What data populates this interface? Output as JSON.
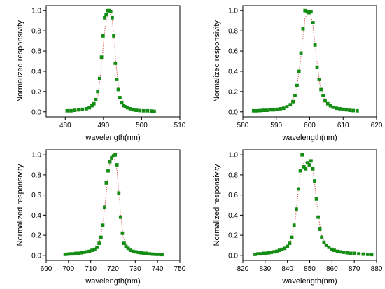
{
  "colors": {
    "marker": "#138d13",
    "fit_line": "#e05050",
    "axis": "#000000"
  },
  "chart_data": [
    {
      "type": "scatter",
      "title": "",
      "xlabel": "wavelength(nm)",
      "ylabel": "Normalized responsivity",
      "xlim": [
        475,
        510
      ],
      "ylim": [
        -0.05,
        1.05
      ],
      "xticks": [
        480,
        490,
        500,
        510
      ],
      "yticks": [
        0.0,
        0.2,
        0.4,
        0.6,
        0.8,
        1.0
      ],
      "grid": false,
      "series": [
        {
          "x": [
            480.5,
            481.5,
            482.5,
            483.5,
            484.5,
            485.5,
            486.3,
            487.0,
            487.5,
            488.0,
            488.5,
            489.0,
            489.5,
            489.9,
            490.3,
            490.7,
            491.1,
            491.5,
            491.9,
            492.3,
            492.7,
            493.1,
            493.5,
            493.9,
            494.3,
            494.8,
            495.3,
            495.8,
            496.3,
            497.0,
            497.8,
            498.6,
            499.5,
            500.5,
            501.5,
            502.5,
            503.3
          ],
          "values": [
            0.01,
            0.01,
            0.015,
            0.02,
            0.025,
            0.03,
            0.04,
            0.06,
            0.08,
            0.12,
            0.2,
            0.33,
            0.54,
            0.75,
            0.93,
            0.96,
            1.0,
            1.0,
            0.99,
            0.93,
            0.75,
            0.48,
            0.32,
            0.22,
            0.14,
            0.09,
            0.06,
            0.05,
            0.04,
            0.03,
            0.02,
            0.015,
            0.012,
            0.01,
            0.01,
            0.008,
            0.005
          ],
          "fit": [
            [
              480.5,
              0.005
            ],
            [
              484.5,
              0.02
            ],
            [
              487,
              0.05
            ],
            [
              488.5,
              0.15
            ],
            [
              489.5,
              0.45
            ],
            [
              490.3,
              0.8
            ],
            [
              491.3,
              1.0
            ],
            [
              492.3,
              0.92
            ],
            [
              493.1,
              0.55
            ],
            [
              494,
              0.22
            ],
            [
              495.3,
              0.07
            ],
            [
              497.5,
              0.025
            ],
            [
              503.3,
              0.005
            ]
          ]
        }
      ]
    },
    {
      "type": "scatter",
      "title": "",
      "xlabel": "wavelength(nm)",
      "ylabel": "Normalized responsivity",
      "xlim": [
        580,
        620
      ],
      "ylim": [
        -0.05,
        1.05
      ],
      "xticks": [
        580,
        590,
        600,
        610,
        620
      ],
      "yticks": [
        0.0,
        0.2,
        0.4,
        0.6,
        0.8,
        1.0
      ],
      "grid": false,
      "series": [
        {
          "x": [
            583.2,
            584.2,
            585.2,
            586.2,
            587.2,
            588.2,
            589.2,
            590.2,
            591.2,
            592.2,
            593.2,
            594.2,
            595.0,
            595.6,
            596.2,
            596.8,
            597.4,
            598.0,
            598.6,
            599.2,
            599.8,
            600.4,
            601.0,
            601.6,
            602.2,
            602.8,
            603.4,
            604.0,
            604.6,
            605.4,
            606.2,
            607.0,
            608.0,
            609.0,
            610.0,
            611.0,
            612.0,
            613.0,
            614.2
          ],
          "values": [
            0.01,
            0.01,
            0.012,
            0.015,
            0.015,
            0.02,
            0.02,
            0.025,
            0.03,
            0.035,
            0.05,
            0.07,
            0.1,
            0.16,
            0.26,
            0.4,
            0.58,
            0.82,
            1.0,
            0.99,
            0.98,
            0.99,
            0.88,
            0.66,
            0.44,
            0.32,
            0.22,
            0.16,
            0.11,
            0.08,
            0.06,
            0.045,
            0.035,
            0.03,
            0.025,
            0.02,
            0.015,
            0.012,
            0.01
          ],
          "fit": [
            [
              583.2,
              0.01
            ],
            [
              590,
              0.02
            ],
            [
              594,
              0.06
            ],
            [
              596,
              0.2
            ],
            [
              597.4,
              0.55
            ],
            [
              598.6,
              0.92
            ],
            [
              599.6,
              1.0
            ],
            [
              600.8,
              0.9
            ],
            [
              601.8,
              0.6
            ],
            [
              603,
              0.28
            ],
            [
              604.6,
              0.1
            ],
            [
              607,
              0.04
            ],
            [
              614.2,
              0.01
            ]
          ]
        }
      ]
    },
    {
      "type": "scatter",
      "title": "",
      "xlabel": "wavelength(nm)",
      "ylabel": "Normalized responsivity",
      "xlim": [
        690,
        750
      ],
      "ylim": [
        -0.05,
        1.05
      ],
      "xticks": [
        690,
        700,
        710,
        720,
        730,
        740,
        750
      ],
      "yticks": [
        0.0,
        0.2,
        0.4,
        0.6,
        0.8,
        1.0
      ],
      "grid": false,
      "series": [
        {
          "x": [
            698.5,
            699.8,
            701.0,
            702.2,
            703.4,
            704.6,
            705.8,
            707.0,
            708.2,
            709.4,
            710.6,
            711.8,
            712.8,
            713.8,
            714.6,
            715.4,
            716.2,
            717.0,
            717.8,
            718.6,
            719.4,
            720.2,
            721.0,
            721.8,
            722.6,
            723.4,
            724.2,
            725.0,
            725.8,
            726.8,
            727.8,
            729.0,
            730.2,
            731.4,
            732.6,
            733.8,
            735.0,
            736.4,
            737.8,
            739.2,
            740.6,
            742.0
          ],
          "values": [
            0.01,
            0.012,
            0.015,
            0.015,
            0.02,
            0.02,
            0.025,
            0.03,
            0.035,
            0.04,
            0.05,
            0.06,
            0.08,
            0.12,
            0.18,
            0.3,
            0.48,
            0.72,
            0.84,
            0.93,
            0.97,
            0.99,
            1.0,
            0.9,
            0.62,
            0.38,
            0.22,
            0.12,
            0.09,
            0.07,
            0.05,
            0.04,
            0.035,
            0.03,
            0.025,
            0.02,
            0.02,
            0.015,
            0.012,
            0.01,
            0.01,
            0.008
          ],
          "fit": [
            [
              698.5,
              0.01
            ],
            [
              708,
              0.03
            ],
            [
              712,
              0.06
            ],
            [
              714.5,
              0.17
            ],
            [
              716.5,
              0.52
            ],
            [
              718.2,
              0.88
            ],
            [
              720.2,
              1.0
            ],
            [
              721.8,
              0.85
            ],
            [
              723,
              0.5
            ],
            [
              724.6,
              0.18
            ],
            [
              727,
              0.06
            ],
            [
              733,
              0.025
            ],
            [
              742,
              0.008
            ]
          ]
        }
      ]
    },
    {
      "type": "scatter",
      "title": "",
      "xlabel": "wavelength(nm)",
      "ylabel": "Normalized responsivity",
      "xlim": [
        820,
        880
      ],
      "ylim": [
        -0.05,
        1.05
      ],
      "xticks": [
        820,
        830,
        840,
        850,
        860,
        870,
        880
      ],
      "yticks": [
        0.0,
        0.2,
        0.4,
        0.6,
        0.8,
        1.0
      ],
      "grid": false,
      "series": [
        {
          "x": [
            825.5,
            826.8,
            828.0,
            829.2,
            830.4,
            831.6,
            832.8,
            834.0,
            835.2,
            836.4,
            837.6,
            838.8,
            840.0,
            841.0,
            842.0,
            843.0,
            844.0,
            845.0,
            845.8,
            846.6,
            847.4,
            848.2,
            849.0,
            849.8,
            850.6,
            851.4,
            852.2,
            853.0,
            853.8,
            854.6,
            855.4,
            856.4,
            857.4,
            858.6,
            859.8,
            861.0,
            862.4,
            863.8,
            865.2,
            866.8,
            868.4,
            870.0,
            872.0,
            874.0,
            876.0,
            877.8
          ],
          "values": [
            0.01,
            0.015,
            0.015,
            0.02,
            0.02,
            0.025,
            0.03,
            0.035,
            0.04,
            0.05,
            0.06,
            0.07,
            0.09,
            0.12,
            0.18,
            0.3,
            0.46,
            0.66,
            0.84,
            1.0,
            0.88,
            0.86,
            0.92,
            0.9,
            0.94,
            0.86,
            0.74,
            0.56,
            0.38,
            0.26,
            0.18,
            0.13,
            0.1,
            0.08,
            0.06,
            0.05,
            0.04,
            0.035,
            0.03,
            0.025,
            0.02,
            0.02,
            0.015,
            0.012,
            0.01,
            0.008
          ],
          "fit": [
            [
              825.5,
              0.01
            ],
            [
              836,
              0.04
            ],
            [
              841,
              0.11
            ],
            [
              843.5,
              0.35
            ],
            [
              845.6,
              0.78
            ],
            [
              847.4,
              0.92
            ],
            [
              849.5,
              0.93
            ],
            [
              851.4,
              0.86
            ],
            [
              853,
              0.56
            ],
            [
              855,
              0.22
            ],
            [
              858,
              0.08
            ],
            [
              865,
              0.03
            ],
            [
              877.8,
              0.008
            ]
          ]
        }
      ]
    }
  ]
}
